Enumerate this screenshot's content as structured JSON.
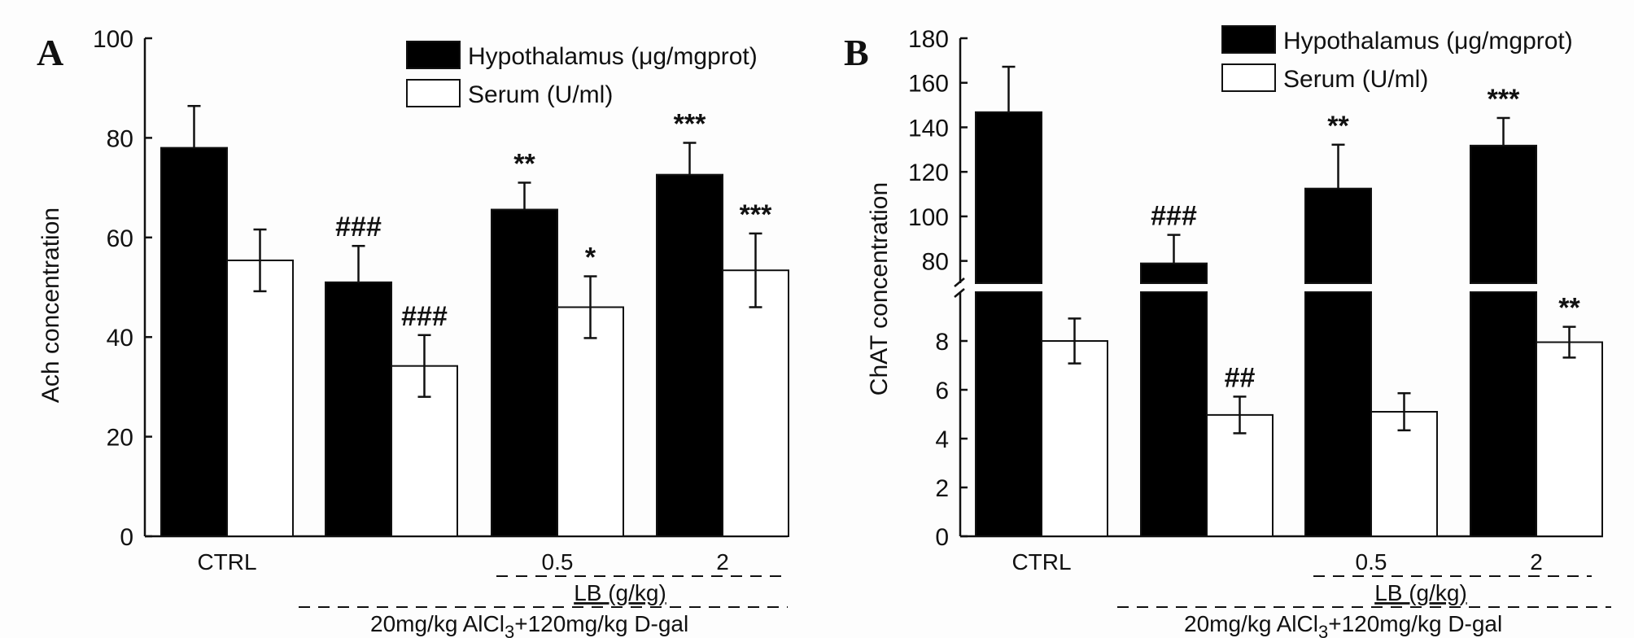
{
  "chart_data": [
    {
      "type": "bar",
      "panel_label": "A",
      "ylabel": "Ach concentration",
      "ylim": [
        0,
        100
      ],
      "yticks": [
        0,
        20,
        40,
        60,
        80,
        100
      ],
      "categories": [
        "CTRL",
        "",
        "0.5",
        "2"
      ],
      "group_labels": {
        "lb": "LB (g/kg)",
        "treatment": {
          "pre": "20mg/kg AlCl",
          "sub": "3",
          "post": "+120mg/kg D-gal"
        }
      },
      "legend": [
        "Hypothalamus (μg/mgprot)",
        "Serum (U/ml)"
      ],
      "legend_position": "top-right",
      "series": [
        {
          "name": "Hypothalamus (μg/mgprot)",
          "color": "#000000",
          "values": [
            78,
            51,
            65.6,
            72.6
          ],
          "errors": [
            8.4,
            7.3,
            5.4,
            6.4
          ],
          "annotations": [
            "",
            "###",
            "**",
            "***"
          ]
        },
        {
          "name": "Serum (U/ml)",
          "color": "#ffffff",
          "values": [
            55.4,
            34.2,
            46,
            53.4
          ],
          "errors": [
            6.2,
            6.2,
            6.2,
            7.4
          ],
          "annotations": [
            "",
            "###",
            "*",
            "***"
          ]
        }
      ],
      "grid": false
    },
    {
      "type": "bar",
      "panel_label": "B",
      "ylabel": "ChAT concentration",
      "broken_axis": true,
      "ylim_lower": [
        0,
        10
      ],
      "ylim_upper": [
        70,
        180
      ],
      "yticks_lower": [
        0,
        2,
        4,
        6,
        8
      ],
      "yticks_upper": [
        80,
        100,
        120,
        140,
        160,
        180
      ],
      "categories": [
        "CTRL",
        "",
        "0.5",
        "2"
      ],
      "group_labels": {
        "lb": "LB (g/kg)",
        "treatment": {
          "pre": "20mg/kg AlCl",
          "sub": "3",
          "post": "+120mg/kg D-gal"
        }
      },
      "legend": [
        "Hypothalamus (μg/mgprot)",
        "Serum (U/ml)"
      ],
      "legend_position": "top-right",
      "series": [
        {
          "name": "Hypothalamus (μg/mgprot)",
          "color": "#000000",
          "values": [
            146.8,
            78.9,
            112.5,
            131.8
          ],
          "errors": [
            20.4,
            12.8,
            19.7,
            12.4
          ],
          "annotations": [
            "",
            "###",
            "**",
            "***"
          ]
        },
        {
          "name": "Serum (U/ml)",
          "color": "#ffffff",
          "values": [
            8.0,
            4.97,
            5.1,
            7.95
          ],
          "errors": [
            0.92,
            0.75,
            0.76,
            0.63
          ],
          "annotations": [
            "",
            "##",
            "",
            "**"
          ]
        }
      ],
      "grid": false
    }
  ]
}
